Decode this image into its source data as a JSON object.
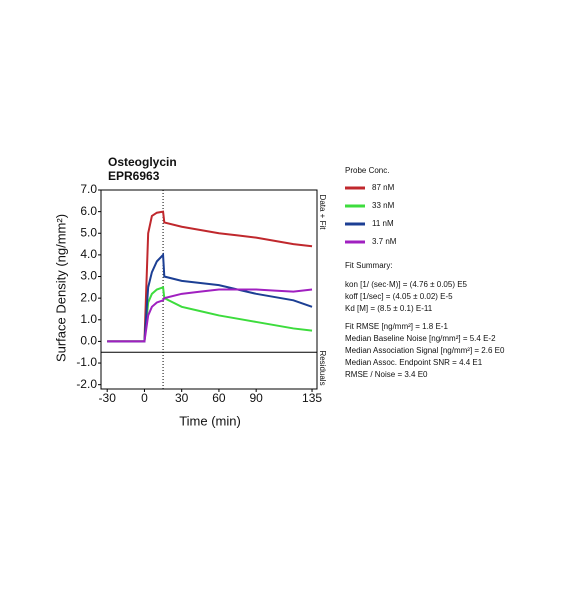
{
  "chart_data": {
    "type": "line",
    "title": "Osteoglycin",
    "subtitle": "EPR6963",
    "x_label": "Time (min)",
    "y_label": "Surface Density (ng/mm²)",
    "annotations": [
      "Data + Fit",
      "Residuals"
    ],
    "legend_title": "Probe Conc.",
    "x": [
      -30,
      -15,
      -1,
      0,
      3,
      6,
      10,
      15,
      16,
      30,
      45,
      60,
      75,
      90,
      105,
      120,
      135
    ],
    "series": [
      {
        "name": "87 nM",
        "color": "#c0282d",
        "values": [
          0,
          0,
          0,
          0,
          5.0,
          5.8,
          5.95,
          6.0,
          5.5,
          5.3,
          5.15,
          5.0,
          4.9,
          4.8,
          4.65,
          4.5,
          4.4
        ]
      },
      {
        "name": "33 nM",
        "color": "#3ddc3d",
        "values": [
          0,
          0,
          0,
          0,
          1.8,
          2.2,
          2.4,
          2.5,
          2.0,
          1.6,
          1.4,
          1.2,
          1.05,
          0.9,
          0.75,
          0.6,
          0.5
        ]
      },
      {
        "name": "11 nM",
        "color": "#1c3f94",
        "values": [
          0,
          0,
          0,
          0,
          2.5,
          3.2,
          3.7,
          4.0,
          3.0,
          2.8,
          2.7,
          2.6,
          2.4,
          2.2,
          2.05,
          1.9,
          1.6
        ]
      },
      {
        "name": "3.7 nM",
        "color": "#a020c0",
        "values": [
          0,
          0,
          0,
          0,
          1.2,
          1.6,
          1.8,
          1.9,
          2.0,
          2.2,
          2.3,
          2.4,
          2.4,
          2.4,
          2.35,
          2.3,
          2.4
        ]
      }
    ],
    "xlim": [
      -35,
      139
    ],
    "ylim": [
      -2.2,
      7.0
    ],
    "xticks": [
      -30,
      0,
      30,
      60,
      90,
      135
    ],
    "yticks": [
      {
        "value": 7,
        "label": "7.0"
      },
      {
        "value": 6,
        "label": "6.0"
      },
      {
        "value": 5,
        "label": "5.0"
      },
      {
        "value": 4,
        "label": "4.0"
      },
      {
        "value": 3,
        "label": "3.0"
      },
      {
        "value": 2,
        "label": "2.0"
      },
      {
        "value": 1,
        "label": "1.0"
      },
      {
        "value": 0,
        "label": "0.0"
      },
      {
        "value": -1,
        "label": "-1.0"
      },
      {
        "value": -2,
        "label": "-2.0"
      }
    ],
    "fit_summary_title": "Fit Summary:",
    "fit_summary": [
      "kon  [1/ (sec·M)]  =   (4.76 ± 0.05) E5",
      "koff  [1/sec]  =   (4.05 ± 0.02) E-5",
      "Kd  [M]  =   (8.5 ± 0.1) E-11",
      "Fit RMSE [ng/mm²]  =   1.8 E-1",
      "Median Baseline Noise [ng/mm²]  =   5.4 E-2",
      "Median Association Signal [ng/mm²]  =   2.6 E0",
      "Median Assoc. Endpoint SNR  =   4.4 E1",
      "RMSE / Noise  =   3.4 E0"
    ]
  }
}
